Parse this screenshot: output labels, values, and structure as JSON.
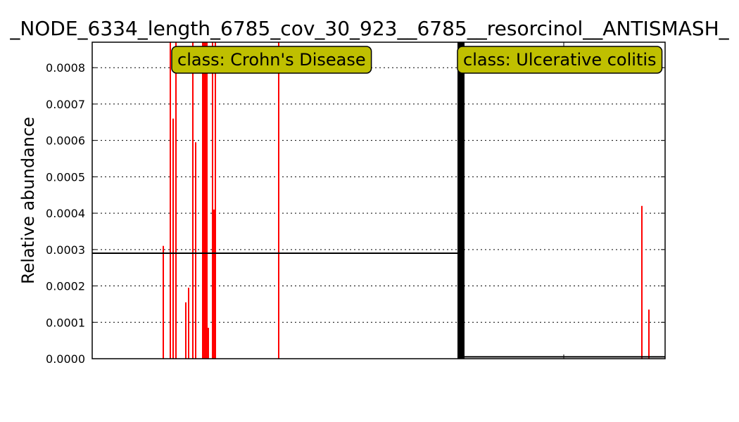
{
  "chart_data": {
    "type": "bar",
    "title": "_NODE_6334_length_6785_cov_30_923__6785__resorcinol__ANTISMASH_",
    "xlabel": "",
    "ylabel": "Relative abundance",
    "ylim": [
      0,
      0.00087
    ],
    "yticks": [
      "0.0000",
      "0.0001",
      "0.0002",
      "0.0003",
      "0.0004",
      "0.0005",
      "0.0006",
      "0.0007",
      "0.0008"
    ],
    "grid": true,
    "colors": {
      "bars": "#ff0000",
      "mean_line": "#000000",
      "annotation_bg": "#bfbf00",
      "separator": "#000000"
    },
    "annotations": [
      "class: Crohn's Disease",
      "class: Ulcerative colitis"
    ],
    "groups": [
      {
        "name": "Crohn's Disease",
        "mean": 0.00029,
        "bars": [
          {
            "x": 50,
            "value": 0.00031
          },
          {
            "x": 55,
            "value": 0.0009
          },
          {
            "x": 57,
            "value": 0.00066
          },
          {
            "x": 59,
            "value": 0.0009
          },
          {
            "x": 66,
            "value": 0.000155
          },
          {
            "x": 68,
            "value": 0.000195
          },
          {
            "x": 71,
            "value": 0.0009
          },
          {
            "x": 73,
            "value": 0.000595
          },
          {
            "x": 78,
            "value": 0.0009
          },
          {
            "x": 79,
            "value": 0.0009
          },
          {
            "x": 80,
            "value": 0.0009
          },
          {
            "x": 81,
            "value": 0.0009
          },
          {
            "x": 82,
            "value": 8.5e-05
          },
          {
            "x": 85,
            "value": 0.0009
          },
          {
            "x": 86,
            "value": 0.00041
          },
          {
            "x": 87,
            "value": 0.0009
          },
          {
            "x": 132,
            "value": 0.0009
          }
        ]
      },
      {
        "name": "Ulcerative colitis",
        "mean": 5e-06,
        "bars": [
          {
            "x": 390,
            "value": 0.00042
          },
          {
            "x": 395,
            "value": 0.000135
          }
        ]
      }
    ]
  }
}
